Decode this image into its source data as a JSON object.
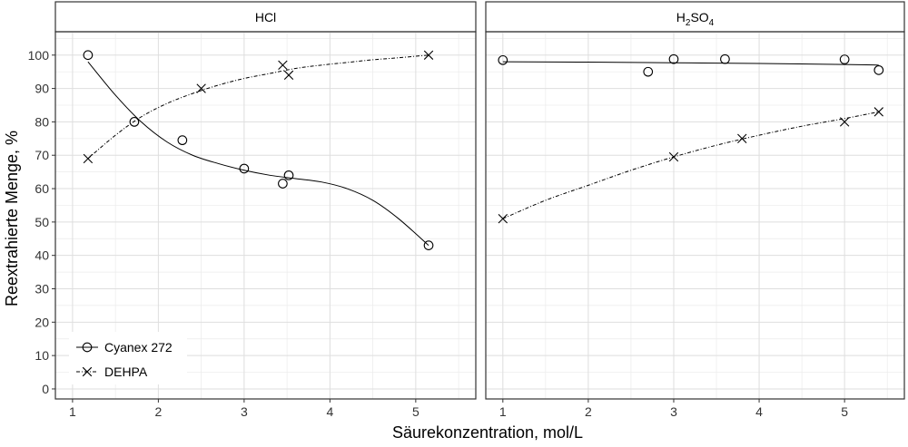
{
  "chart_data": {
    "type": "scatter",
    "xlabel": "Säurekonzentration, mol/L",
    "ylabel": "Reextrahierte Menge, %",
    "ylim": [
      -3,
      107
    ],
    "yticks": [
      0,
      10,
      20,
      30,
      40,
      50,
      60,
      70,
      80,
      90,
      100
    ],
    "grid": true,
    "legend_position": "bottom-left",
    "legend": [
      {
        "name": "Cyanex 272",
        "marker": "circle",
        "line": "solid"
      },
      {
        "name": "DEHPA",
        "marker": "cross",
        "line": "dashdot"
      }
    ],
    "panels": [
      {
        "title": "HCl",
        "title_main": "HCl",
        "title_sub": "",
        "title_tail": "",
        "title_sub2": "",
        "xlim": [
          0.8,
          5.7
        ],
        "xticks": [
          1,
          2,
          3,
          4,
          5
        ],
        "series": [
          {
            "name": "Cyanex 272",
            "marker": "circle",
            "x": [
              1.18,
              1.72,
              2.28,
              3.0,
              3.45,
              3.52,
              5.15
            ],
            "y": [
              100,
              80,
              74.5,
              66,
              61.5,
              64,
              43
            ],
            "fit_x": [
              1.18,
              1.5,
              1.8,
              2.1,
              2.4,
              2.7,
              3.0,
              3.3,
              3.6,
              3.9,
              4.2,
              4.5,
              4.8,
              5.15
            ],
            "fit_y": [
              98,
              88,
              80,
              74,
              70,
              67.5,
              65.5,
              64,
              63,
              62,
              60,
              56.5,
              51,
              43
            ]
          },
          {
            "name": "DEHPA",
            "marker": "cross",
            "x": [
              1.18,
              2.5,
              3.45,
              3.52,
              5.15
            ],
            "y": [
              69,
              90,
              97,
              94,
              100
            ],
            "fit_x": [
              1.18,
              1.5,
              1.8,
              2.1,
              2.4,
              2.7,
              3.0,
              3.3,
              3.6,
              3.9,
              4.2,
              4.5,
              4.8,
              5.15
            ],
            "fit_y": [
              69,
              76,
              81.5,
              85.5,
              88.5,
              91,
              93,
              94.5,
              96,
              97,
              97.8,
              98.6,
              99.2,
              100
            ]
          }
        ]
      },
      {
        "title": "H2SO4",
        "title_main": "H",
        "title_sub": "2",
        "title_tail": "SO",
        "title_sub2": "4",
        "xlim": [
          0.8,
          5.7
        ],
        "xticks": [
          1,
          2,
          3,
          4,
          5
        ],
        "series": [
          {
            "name": "Cyanex 272",
            "marker": "circle",
            "x": [
              1.0,
              2.7,
              3.0,
              3.6,
              5.0,
              5.4
            ],
            "y": [
              98.5,
              95,
              98.8,
              98.8,
              98.7,
              95.5
            ],
            "fit_x": [
              1.0,
              2.0,
              3.0,
              4.0,
              5.0,
              5.4
            ],
            "fit_y": [
              98,
              97.9,
              97.7,
              97.5,
              97.2,
              97
            ]
          },
          {
            "name": "DEHPA",
            "marker": "cross",
            "x": [
              1.0,
              3.0,
              3.8,
              5.0,
              5.4
            ],
            "y": [
              51,
              69.5,
              75,
              80,
              83
            ],
            "fit_x": [
              1.0,
              1.5,
              2.0,
              2.5,
              3.0,
              3.5,
              4.0,
              4.5,
              5.0,
              5.4
            ],
            "fit_y": [
              51,
              56.5,
              61,
              65.5,
              69.5,
              73,
              76,
              78.7,
              81,
              83
            ]
          }
        ]
      }
    ]
  }
}
